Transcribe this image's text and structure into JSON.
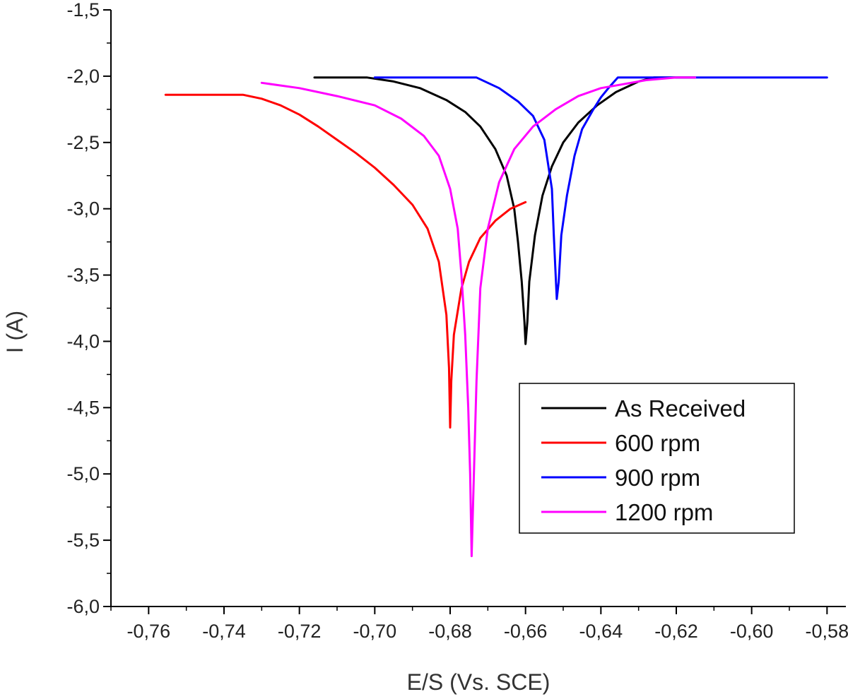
{
  "chart_data": {
    "type": "line",
    "title": "",
    "xlabel": "E/S (Vs. SCE)",
    "ylabel": "I (A)",
    "xlim": [
      -0.77,
      -0.575
    ],
    "ylim": [
      -6.0,
      -1.5
    ],
    "x_ticks": [
      -0.76,
      -0.74,
      -0.72,
      -0.7,
      -0.68,
      -0.66,
      -0.64,
      -0.62,
      -0.6,
      -0.58
    ],
    "x_tick_labels": [
      "-0,76",
      "-0,74",
      "-0,72",
      "-0,70",
      "-0,68",
      "-0,66",
      "-0,64",
      "-0,62",
      "-0,60",
      "-0,58"
    ],
    "y_ticks": [
      -1.5,
      -2.0,
      -2.5,
      -3.0,
      -3.5,
      -4.0,
      -4.5,
      -5.0,
      -5.5,
      -6.0
    ],
    "y_tick_labels": [
      "-1,5",
      "-2,0",
      "-2,5",
      "-3,0",
      "-3,5",
      "-4,0",
      "-4,5",
      "-5,0",
      "-5,5",
      "-6,0"
    ],
    "grid": false,
    "legend_position": "bottom-right",
    "series": [
      {
        "name": "As Received",
        "color": "#000000",
        "points": [
          [
            -0.716,
            -2.01
          ],
          [
            -0.702,
            -2.01
          ],
          [
            -0.695,
            -2.04
          ],
          [
            -0.688,
            -2.09
          ],
          [
            -0.681,
            -2.18
          ],
          [
            -0.676,
            -2.27
          ],
          [
            -0.672,
            -2.38
          ],
          [
            -0.668,
            -2.55
          ],
          [
            -0.665,
            -2.75
          ],
          [
            -0.663,
            -3.0
          ],
          [
            -0.662,
            -3.25
          ],
          [
            -0.661,
            -3.55
          ],
          [
            -0.6603,
            -3.85
          ],
          [
            -0.66,
            -4.02
          ],
          [
            -0.6595,
            -3.85
          ],
          [
            -0.659,
            -3.55
          ],
          [
            -0.6575,
            -3.2
          ],
          [
            -0.6555,
            -2.9
          ],
          [
            -0.653,
            -2.68
          ],
          [
            -0.65,
            -2.5
          ],
          [
            -0.646,
            -2.35
          ],
          [
            -0.641,
            -2.22
          ],
          [
            -0.636,
            -2.12
          ],
          [
            -0.63,
            -2.04
          ],
          [
            -0.626,
            -2.01
          ],
          [
            -0.615,
            -2.01
          ]
        ]
      },
      {
        "name": "600 rpm",
        "color": "#ff0000",
        "points": [
          [
            -0.7555,
            -2.14
          ],
          [
            -0.735,
            -2.14
          ],
          [
            -0.73,
            -2.17
          ],
          [
            -0.725,
            -2.22
          ],
          [
            -0.72,
            -2.29
          ],
          [
            -0.715,
            -2.38
          ],
          [
            -0.71,
            -2.48
          ],
          [
            -0.705,
            -2.58
          ],
          [
            -0.7,
            -2.69
          ],
          [
            -0.695,
            -2.82
          ],
          [
            -0.69,
            -2.97
          ],
          [
            -0.686,
            -3.15
          ],
          [
            -0.683,
            -3.4
          ],
          [
            -0.681,
            -3.8
          ],
          [
            -0.6803,
            -4.2
          ],
          [
            -0.68,
            -4.65
          ],
          [
            -0.6797,
            -4.3
          ],
          [
            -0.679,
            -3.95
          ],
          [
            -0.677,
            -3.6
          ],
          [
            -0.675,
            -3.4
          ],
          [
            -0.672,
            -3.22
          ],
          [
            -0.668,
            -3.09
          ],
          [
            -0.664,
            -3.0
          ],
          [
            -0.66,
            -2.95
          ]
        ]
      },
      {
        "name": "900 rpm",
        "color": "#0000ff",
        "points": [
          [
            -0.7,
            -2.01
          ],
          [
            -0.673,
            -2.01
          ],
          [
            -0.667,
            -2.09
          ],
          [
            -0.662,
            -2.19
          ],
          [
            -0.658,
            -2.3
          ],
          [
            -0.655,
            -2.48
          ],
          [
            -0.653,
            -2.85
          ],
          [
            -0.6525,
            -3.2
          ],
          [
            -0.652,
            -3.5
          ],
          [
            -0.6517,
            -3.68
          ],
          [
            -0.6512,
            -3.55
          ],
          [
            -0.6505,
            -3.2
          ],
          [
            -0.649,
            -2.9
          ],
          [
            -0.647,
            -2.6
          ],
          [
            -0.645,
            -2.4
          ],
          [
            -0.642,
            -2.25
          ],
          [
            -0.64,
            -2.16
          ],
          [
            -0.638,
            -2.09
          ],
          [
            -0.6355,
            -2.01
          ],
          [
            -0.58,
            -2.01
          ]
        ]
      },
      {
        "name": "1200 rpm",
        "color": "#ff00ff",
        "points": [
          [
            -0.73,
            -2.05
          ],
          [
            -0.72,
            -2.09
          ],
          [
            -0.71,
            -2.15
          ],
          [
            -0.7,
            -2.22
          ],
          [
            -0.693,
            -2.32
          ],
          [
            -0.687,
            -2.45
          ],
          [
            -0.683,
            -2.6
          ],
          [
            -0.68,
            -2.85
          ],
          [
            -0.678,
            -3.15
          ],
          [
            -0.677,
            -3.5
          ],
          [
            -0.676,
            -3.95
          ],
          [
            -0.6752,
            -4.5
          ],
          [
            -0.6747,
            -5.0
          ],
          [
            -0.6743,
            -5.62
          ],
          [
            -0.6738,
            -5.1
          ],
          [
            -0.673,
            -4.3
          ],
          [
            -0.672,
            -3.6
          ],
          [
            -0.67,
            -3.15
          ],
          [
            -0.667,
            -2.8
          ],
          [
            -0.663,
            -2.55
          ],
          [
            -0.658,
            -2.38
          ],
          [
            -0.652,
            -2.25
          ],
          [
            -0.646,
            -2.15
          ],
          [
            -0.64,
            -2.09
          ],
          [
            -0.634,
            -2.06
          ],
          [
            -0.628,
            -2.03
          ],
          [
            -0.62,
            -2.01
          ],
          [
            -0.615,
            -2.01
          ]
        ]
      }
    ]
  }
}
